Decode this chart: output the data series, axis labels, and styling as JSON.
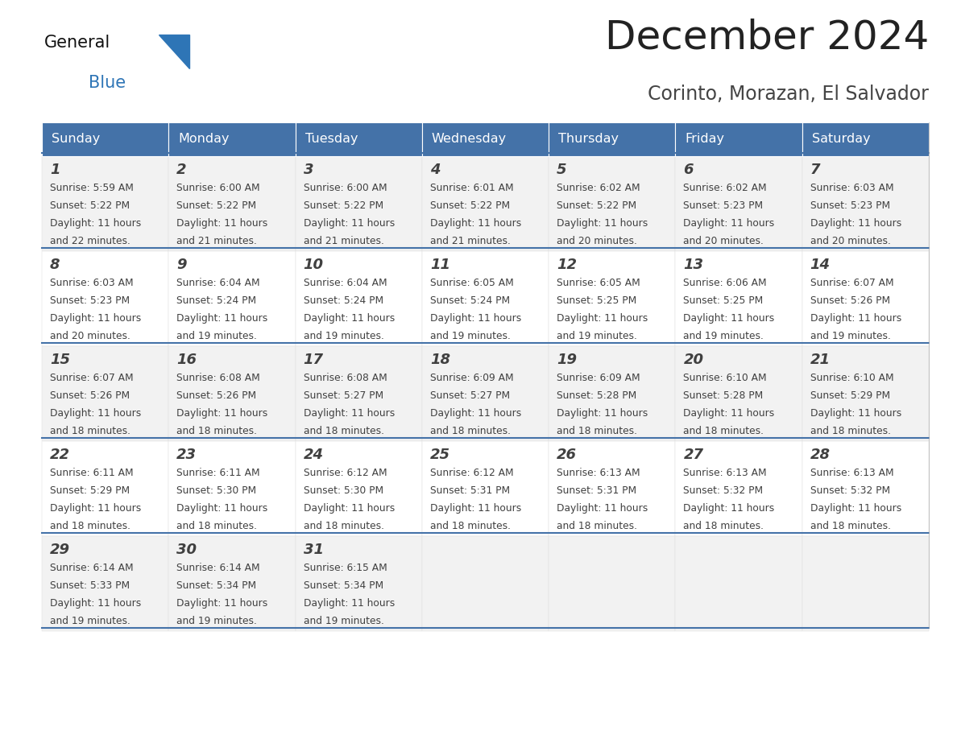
{
  "title": "December 2024",
  "subtitle": "Corinto, Morazan, El Salvador",
  "header_color": "#4472a8",
  "header_text_color": "#ffffff",
  "row_bg_even": "#f2f2f2",
  "row_bg_odd": "#ffffff",
  "separator_color": "#4472a8",
  "text_color": "#404040",
  "title_color": "#222222",
  "subtitle_color": "#444444",
  "days_of_week": [
    "Sunday",
    "Monday",
    "Tuesday",
    "Wednesday",
    "Thursday",
    "Friday",
    "Saturday"
  ],
  "calendar_data": [
    [
      {
        "day": 1,
        "sunrise": "5:59 AM",
        "sunset": "5:22 PM",
        "daylight_min": "22"
      },
      {
        "day": 2,
        "sunrise": "6:00 AM",
        "sunset": "5:22 PM",
        "daylight_min": "21"
      },
      {
        "day": 3,
        "sunrise": "6:00 AM",
        "sunset": "5:22 PM",
        "daylight_min": "21"
      },
      {
        "day": 4,
        "sunrise": "6:01 AM",
        "sunset": "5:22 PM",
        "daylight_min": "21"
      },
      {
        "day": 5,
        "sunrise": "6:02 AM",
        "sunset": "5:22 PM",
        "daylight_min": "20"
      },
      {
        "day": 6,
        "sunrise": "6:02 AM",
        "sunset": "5:23 PM",
        "daylight_min": "20"
      },
      {
        "day": 7,
        "sunrise": "6:03 AM",
        "sunset": "5:23 PM",
        "daylight_min": "20"
      }
    ],
    [
      {
        "day": 8,
        "sunrise": "6:03 AM",
        "sunset": "5:23 PM",
        "daylight_min": "20"
      },
      {
        "day": 9,
        "sunrise": "6:04 AM",
        "sunset": "5:24 PM",
        "daylight_min": "19"
      },
      {
        "day": 10,
        "sunrise": "6:04 AM",
        "sunset": "5:24 PM",
        "daylight_min": "19"
      },
      {
        "day": 11,
        "sunrise": "6:05 AM",
        "sunset": "5:24 PM",
        "daylight_min": "19"
      },
      {
        "day": 12,
        "sunrise": "6:05 AM",
        "sunset": "5:25 PM",
        "daylight_min": "19"
      },
      {
        "day": 13,
        "sunrise": "6:06 AM",
        "sunset": "5:25 PM",
        "daylight_min": "19"
      },
      {
        "day": 14,
        "sunrise": "6:07 AM",
        "sunset": "5:26 PM",
        "daylight_min": "19"
      }
    ],
    [
      {
        "day": 15,
        "sunrise": "6:07 AM",
        "sunset": "5:26 PM",
        "daylight_min": "18"
      },
      {
        "day": 16,
        "sunrise": "6:08 AM",
        "sunset": "5:26 PM",
        "daylight_min": "18"
      },
      {
        "day": 17,
        "sunrise": "6:08 AM",
        "sunset": "5:27 PM",
        "daylight_min": "18"
      },
      {
        "day": 18,
        "sunrise": "6:09 AM",
        "sunset": "5:27 PM",
        "daylight_min": "18"
      },
      {
        "day": 19,
        "sunrise": "6:09 AM",
        "sunset": "5:28 PM",
        "daylight_min": "18"
      },
      {
        "day": 20,
        "sunrise": "6:10 AM",
        "sunset": "5:28 PM",
        "daylight_min": "18"
      },
      {
        "day": 21,
        "sunrise": "6:10 AM",
        "sunset": "5:29 PM",
        "daylight_min": "18"
      }
    ],
    [
      {
        "day": 22,
        "sunrise": "6:11 AM",
        "sunset": "5:29 PM",
        "daylight_min": "18"
      },
      {
        "day": 23,
        "sunrise": "6:11 AM",
        "sunset": "5:30 PM",
        "daylight_min": "18"
      },
      {
        "day": 24,
        "sunrise": "6:12 AM",
        "sunset": "5:30 PM",
        "daylight_min": "18"
      },
      {
        "day": 25,
        "sunrise": "6:12 AM",
        "sunset": "5:31 PM",
        "daylight_min": "18"
      },
      {
        "day": 26,
        "sunrise": "6:13 AM",
        "sunset": "5:31 PM",
        "daylight_min": "18"
      },
      {
        "day": 27,
        "sunrise": "6:13 AM",
        "sunset": "5:32 PM",
        "daylight_min": "18"
      },
      {
        "day": 28,
        "sunrise": "6:13 AM",
        "sunset": "5:32 PM",
        "daylight_min": "18"
      }
    ],
    [
      {
        "day": 29,
        "sunrise": "6:14 AM",
        "sunset": "5:33 PM",
        "daylight_min": "19"
      },
      {
        "day": 30,
        "sunrise": "6:14 AM",
        "sunset": "5:34 PM",
        "daylight_min": "19"
      },
      {
        "day": 31,
        "sunrise": "6:15 AM",
        "sunset": "5:34 PM",
        "daylight_min": "19"
      },
      null,
      null,
      null,
      null
    ]
  ]
}
